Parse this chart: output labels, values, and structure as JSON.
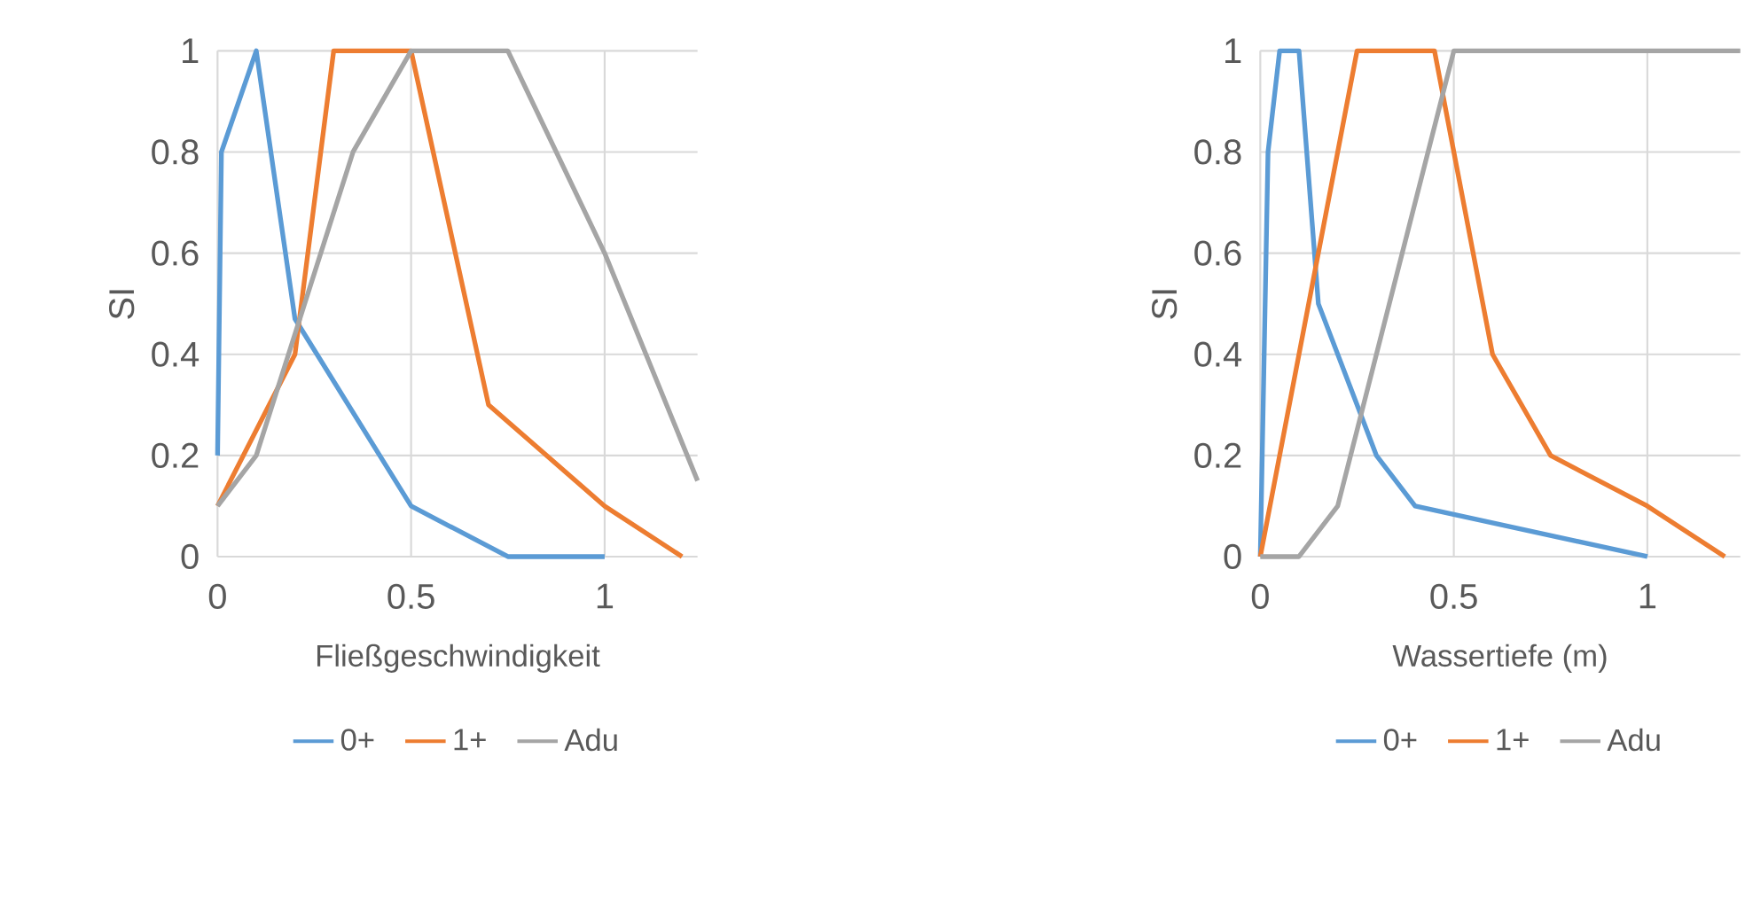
{
  "chart_data": [
    {
      "type": "line",
      "xlabel": "Fließgeschwindigkeit",
      "ylabel": "SI",
      "xlim": [
        0,
        1.24
      ],
      "xticks": [
        0,
        0.5,
        1
      ],
      "ylim": [
        0,
        1
      ],
      "yticks": [
        0,
        0.2,
        0.4,
        0.6,
        0.8,
        1
      ],
      "grid": true,
      "legend": "bottom",
      "series": [
        {
          "name": "0+",
          "color": "#5b9bd5",
          "x": [
            0,
            0.01,
            0.1,
            0.2,
            0.5,
            0.75,
            1
          ],
          "values": [
            0.2,
            0.8,
            1,
            0.47,
            0.1,
            0,
            0
          ]
        },
        {
          "name": "1+",
          "color": "#ed7d31",
          "x": [
            0,
            0.2,
            0.3,
            0.5,
            0.7,
            1,
            1.2
          ],
          "values": [
            0.1,
            0.4,
            1,
            1,
            0.3,
            0.1,
            0
          ]
        },
        {
          "name": "Adu",
          "color": "#a5a5a5",
          "x": [
            0,
            0.1,
            0.35,
            0.5,
            0.75,
            1,
            1.24
          ],
          "values": [
            0.1,
            0.2,
            0.8,
            1,
            1,
            0.6,
            0.15
          ]
        }
      ]
    },
    {
      "type": "line",
      "xlabel": "Wassertiefe (m)",
      "ylabel": "SI",
      "xlim": [
        0,
        1.24
      ],
      "xticks": [
        0,
        0.5,
        1
      ],
      "ylim": [
        0,
        1
      ],
      "yticks": [
        0,
        0.2,
        0.4,
        0.6,
        0.8,
        1
      ],
      "grid": true,
      "legend": "bottom",
      "series": [
        {
          "name": "0+",
          "color": "#5b9bd5",
          "x": [
            0,
            0.02,
            0.05,
            0.1,
            0.15,
            0.3,
            0.4,
            1
          ],
          "values": [
            0,
            0.8,
            1,
            1,
            0.5,
            0.2,
            0.1,
            0
          ]
        },
        {
          "name": "1+",
          "color": "#ed7d31",
          "x": [
            0,
            0.25,
            0.45,
            0.6,
            0.75,
            1,
            1.2
          ],
          "values": [
            0,
            1,
            1,
            0.4,
            0.2,
            0.1,
            0
          ]
        },
        {
          "name": "Adu",
          "color": "#a5a5a5",
          "x": [
            0,
            0.1,
            0.2,
            0.5,
            1.24
          ],
          "values": [
            0,
            0,
            0.1,
            1,
            1
          ]
        }
      ]
    }
  ]
}
